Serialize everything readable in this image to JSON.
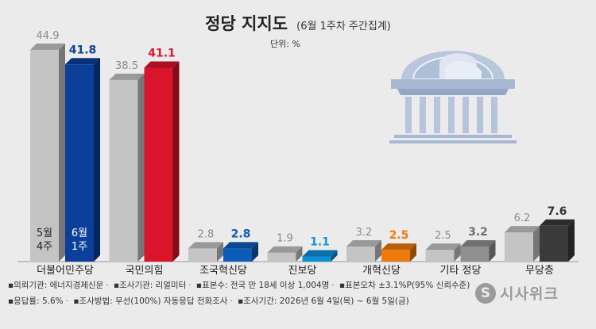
{
  "header": {
    "title": "정당 지지도",
    "subtitle": "(6월 1주차 주간집계)",
    "unit": "단위: %"
  },
  "chart_data": {
    "type": "bar",
    "title": "정당 지지도",
    "subtitle": "(6월 1주차 주간집계)",
    "unit": "%",
    "categories": [
      "더불어민주당",
      "국민의힘",
      "조국혁신당",
      "진보당",
      "개혁신당",
      "기타 정당",
      "무당층"
    ],
    "series": [
      {
        "name": "5월 4주",
        "values": [
          44.9,
          38.5,
          2.8,
          1.9,
          3.2,
          2.5,
          6.2
        ]
      },
      {
        "name": "6월 1주",
        "values": [
          41.8,
          41.1,
          2.8,
          1.1,
          2.5,
          3.2,
          7.6
        ]
      }
    ],
    "value_labels": {
      "previous": [
        "44.9",
        "38.5",
        "2.8",
        "1.9",
        "3.2",
        "2.5",
        "6.2"
      ],
      "current": [
        "41.8",
        "41.1",
        "2.8",
        "1.1",
        "2.5",
        "3.2",
        "7.6"
      ]
    },
    "in_bar_labels": [
      "5월\n4주",
      "6월\n1주"
    ],
    "colors": {
      "previous": "#c4c4c4",
      "current": [
        "#0b3f99",
        "#d9142b",
        "#0d5cb8",
        "#0d8fd6",
        "#ee7a0c",
        "#909090",
        "#3a3a3a"
      ],
      "current_label": [
        "#0b3f99",
        "#d9142b",
        "#0d5cb8",
        "#1296dc",
        "#ee7a0c",
        "#6e6e6e",
        "#333333"
      ]
    },
    "ylim": [
      0,
      50
    ],
    "grid": false,
    "legend": "none"
  },
  "footnotes": {
    "line1": [
      "▪의뢰기관: 에너지경제신문",
      "▪조사기관: 리얼미터",
      "▪표본수: 전국 만 18세 이상 1,004명",
      "▪표본오차 ±3.1%P(95% 신뢰수준)"
    ],
    "line2": [
      "▪응답률: 5.6%",
      "▪조사방법: 무선(100%) 자동응답 전화조사",
      "▪조사기간: 2026년 6월 4일(목) ~ 6월 5일(금)"
    ]
  },
  "brand": {
    "mark": "S",
    "name": "시사위크"
  },
  "illustration": {
    "icon": "national-assembly-building-icon"
  }
}
